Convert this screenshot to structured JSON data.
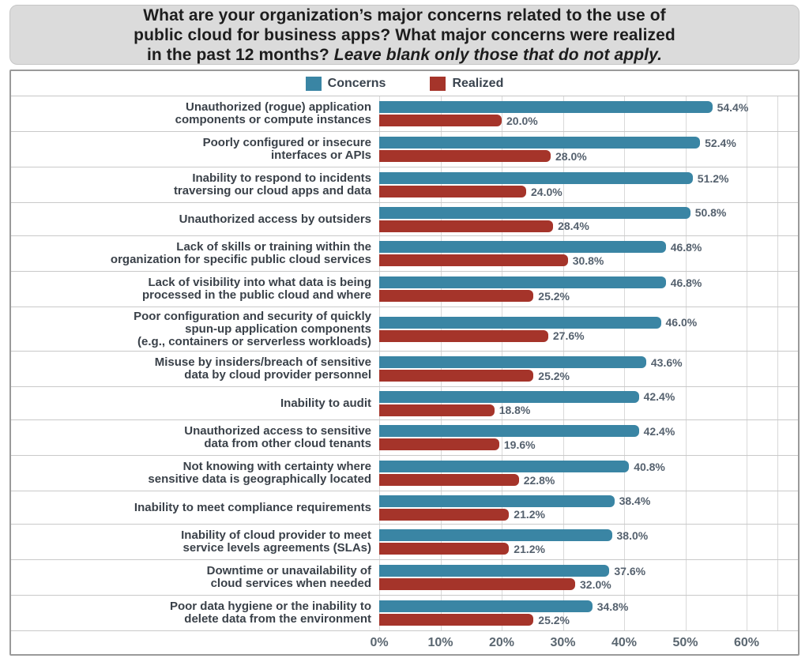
{
  "title": {
    "line1": "What are your organization’s major concerns related to the use of",
    "line2": "public cloud for business apps? What major concerns were realized",
    "line3_normal": "in the past 12 months? ",
    "line3_italic": "Leave blank only those that do not apply."
  },
  "legend": {
    "concerns_label": "Concerns",
    "realized_label": "Realized"
  },
  "colors": {
    "concerns": "#3a85a4",
    "realized": "#a5342a",
    "title_bg": "#dbdbdb",
    "panel_border": "#9a9a9a",
    "gridline": "#d9d9d9",
    "label_text": "#3a4149",
    "value_text": "#55616e"
  },
  "chart_data": {
    "type": "bar",
    "orientation": "horizontal",
    "title": "What are your organization’s major concerns related to the use of public cloud for business apps? What major concerns were realized in the past 12 months? Leave blank only those that do not apply.",
    "xlabel": "",
    "ylabel": "",
    "xlim": [
      0,
      65
    ],
    "x_ticks": [
      "0%",
      "10%",
      "20%",
      "30%",
      "40%",
      "50%",
      "60%"
    ],
    "x_tick_values": [
      0,
      10,
      20,
      30,
      40,
      50,
      60
    ],
    "grid": true,
    "legend_position": "top-center",
    "value_label_format": "percent-one-decimal",
    "categories": [
      "Unauthorized (rogue) application components or compute instances",
      "Poorly configured or insecure interfaces or APIs",
      "Inability to respond to incidents traversing our cloud apps and data",
      "Unauthorized access by outsiders",
      "Lack of skills or training within the organization for specific public cloud services",
      "Lack of visibility into what data is being processed in the public cloud and where",
      "Poor configuration and security of quickly spun-up application components (e.g., containers or serverless workloads)",
      "Misuse by insiders/breach of sensitive data by cloud provider personnel",
      "Inability to audit",
      "Unauthorized access to sensitive data from other cloud tenants",
      "Not knowing with certainty where sensitive data is geographically located",
      "Inability to meet compliance requirements",
      "Inability of cloud provider to meet service levels agreements (SLAs)",
      "Downtime or unavailability of cloud services when needed",
      "Poor data hygiene or the inability to delete data from the environment"
    ],
    "label_lines": [
      [
        "Unauthorized (rogue) application",
        "components or compute instances"
      ],
      [
        "Poorly configured or insecure",
        "interfaces or APIs"
      ],
      [
        "Inability to respond to incidents",
        "traversing our cloud apps and data"
      ],
      [
        "Unauthorized access by outsiders"
      ],
      [
        "Lack of skills or training within the",
        "organization for specific public cloud services"
      ],
      [
        "Lack of visibility into what data is being",
        "processed in the public cloud and where"
      ],
      [
        "Poor configuration and security of quickly",
        "spun-up application components",
        "(e.g., containers or serverless workloads)"
      ],
      [
        "Misuse by insiders/breach of sensitive",
        "data by cloud provider personnel"
      ],
      [
        "Inability to audit"
      ],
      [
        "Unauthorized access to sensitive",
        "data from other cloud tenants"
      ],
      [
        "Not knowing with certainty where",
        "sensitive data is geographically located"
      ],
      [
        "Inability to meet compliance requirements"
      ],
      [
        "Inability of cloud provider to meet",
        "service levels agreements (SLAs)"
      ],
      [
        "Downtime or unavailability of",
        "cloud services when needed"
      ],
      [
        "Poor data hygiene or the inability to",
        "delete data from the environment"
      ]
    ],
    "series": [
      {
        "name": "Concerns",
        "values": [
          54.4,
          52.4,
          51.2,
          50.8,
          46.8,
          46.8,
          46.0,
          43.6,
          42.4,
          42.4,
          40.8,
          38.4,
          38.0,
          37.6,
          34.8
        ]
      },
      {
        "name": "Realized",
        "values": [
          20.0,
          28.0,
          24.0,
          28.4,
          30.8,
          25.2,
          27.6,
          25.2,
          18.8,
          19.6,
          22.8,
          21.2,
          21.2,
          32.0,
          25.2
        ]
      }
    ]
  }
}
